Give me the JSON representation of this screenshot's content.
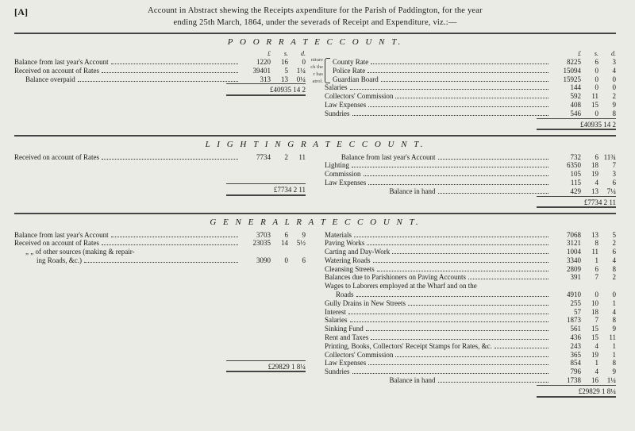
{
  "header": {
    "brackets": "[A]",
    "line1_a": "Account in Abstract shewing the Receipts a",
    "line1_b": "xpenditure for the Parish of Paddington, for the year",
    "line2_a": "ending 25th March, 1864, under the sever",
    "line2_b": "ads of Receipt and Expenditure, viz.:—"
  },
  "lsd_head": {
    "l": "£",
    "s": "s.",
    "d": "d."
  },
  "section1": {
    "title": "P O O R   R A T E   C C O U N T.",
    "left": {
      "rows": [
        {
          "label": "Balance from last year's Account",
          "l": "1220",
          "s": "16",
          "d": "0"
        },
        {
          "label": "Received on account of Rates",
          "l": "39401",
          "s": "5",
          "d": "1¼"
        },
        {
          "label": "Balance overpaid",
          "l": "313",
          "s": "13",
          "d": "0¼",
          "indent": true
        }
      ],
      "total": "£40935 14  2"
    },
    "right": {
      "brace_labels": [
        "niture",
        "ch the",
        "r has",
        "atrol."
      ],
      "rows": [
        {
          "label": "County Rate",
          "l": "8225",
          "s": "6",
          "d": "3"
        },
        {
          "label": "Police Rate",
          "l": "15094",
          "s": "0",
          "d": "4"
        },
        {
          "label": "Guardian Board",
          "l": "15925",
          "s": "0",
          "d": "0"
        },
        {
          "label": "Salaries",
          "l": "144",
          "s": "0",
          "d": "0"
        },
        {
          "label": "Collectors' Commission",
          "l": "592",
          "s": "11",
          "d": "2"
        },
        {
          "label": "Law Expenses",
          "l": "408",
          "s": "15",
          "d": "9"
        },
        {
          "label": "Sundries",
          "l": "546",
          "s": "0",
          "d": "8"
        }
      ],
      "total": "£40935 14  2"
    }
  },
  "section2": {
    "title": "L I G H T I N G   R A T E   C C O U N T.",
    "left": {
      "rows": [
        {
          "label": "Received on account of Rates",
          "l": "7734",
          "s": "2",
          "d": "11"
        }
      ],
      "total": "£7734  2 11"
    },
    "right": {
      "rows": [
        {
          "label": "Balance from last year's Account",
          "l": "732",
          "s": "6",
          "d": "11¾",
          "align_right": true
        },
        {
          "label": "Lighting",
          "l": "6350",
          "s": "18",
          "d": "7"
        },
        {
          "label": "Commission",
          "l": "105",
          "s": "19",
          "d": "3"
        },
        {
          "label": "Law Expenses",
          "l": "115",
          "s": "4",
          "d": "6"
        },
        {
          "label": "Balance in hand",
          "l": "429",
          "s": "13",
          "d": "7¼",
          "align_right": true
        }
      ],
      "total": "£7734  2 11"
    }
  },
  "section3": {
    "title": "G E N E R A L   R A T E   C C O U N T.",
    "left": {
      "rows": [
        {
          "label": "Balance from last year's Account",
          "l": "3703",
          "s": "6",
          "d": "9"
        },
        {
          "label": "Received on account of Rates",
          "l": "23035",
          "s": "14",
          "d": "5½"
        },
        {
          "label": "„       „    of other sources (making & repair-",
          "nolsd": true,
          "indent": true
        },
        {
          "label": "ing Roads, &c.)",
          "l": "3090",
          "s": "0",
          "d": "6",
          "indent2": true
        }
      ],
      "total": "£29829  1  8¼"
    },
    "right": {
      "rows": [
        {
          "label": "Materials",
          "l": "7068",
          "s": "13",
          "d": "5"
        },
        {
          "label": "Paving Works",
          "l": "3121",
          "s": "8",
          "d": "2"
        },
        {
          "label": "Carting and Day-Work",
          "l": "1004",
          "s": "11",
          "d": "6"
        },
        {
          "label": "Watering Roads",
          "l": "3340",
          "s": "1",
          "d": "4"
        },
        {
          "label": "Cleansing Streets",
          "l": "2809",
          "s": "6",
          "d": "8"
        },
        {
          "label": "Balances due to Parishioners on Paving Accounts",
          "l": "391",
          "s": "7",
          "d": "2"
        },
        {
          "label": "Wages to Laborers employed at the Wharf and on the",
          "nolsd": true
        },
        {
          "label": "Roads",
          "l": "4910",
          "s": "0",
          "d": "0",
          "indent": true
        },
        {
          "label": "Gully Drains in New Streets",
          "l": "255",
          "s": "10",
          "d": "1"
        },
        {
          "label": "Interest",
          "l": "57",
          "s": "18",
          "d": "4"
        },
        {
          "label": "Salaries",
          "l": "1873",
          "s": "7",
          "d": "8"
        },
        {
          "label": "Sinking Fund",
          "l": "561",
          "s": "15",
          "d": "9"
        },
        {
          "label": "Rent and Taxes",
          "l": "436",
          "s": "15",
          "d": "11"
        },
        {
          "label": "Printing, Books, Collectors' Receipt Stamps for Rates, &c.",
          "l": "243",
          "s": "4",
          "d": "1"
        },
        {
          "label": "Collectors' Commission",
          "l": "365",
          "s": "19",
          "d": "1"
        },
        {
          "label": "Law Expenses",
          "l": "854",
          "s": "1",
          "d": "8"
        },
        {
          "label": "Sundries",
          "l": "796",
          "s": "4",
          "d": "9"
        },
        {
          "label": "Balance in hand",
          "l": "1738",
          "s": "16",
          "d": "1¼",
          "align_right": true
        }
      ],
      "total": "£29829  1  8¼"
    }
  }
}
